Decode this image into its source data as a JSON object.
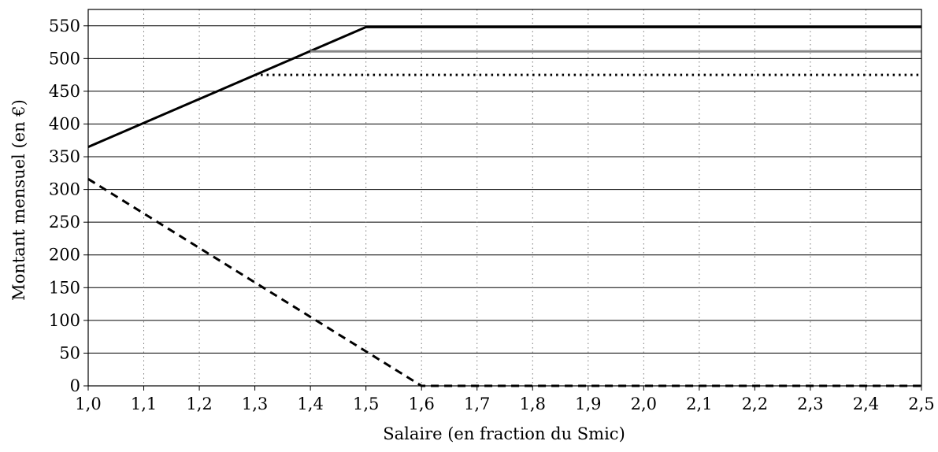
{
  "chart_data": {
    "type": "line",
    "title": "",
    "xlabel": "Salaire (en fraction du Smic)",
    "ylabel": "Montant mensuel (en €)",
    "xlim": [
      1.0,
      2.5
    ],
    "ylim": [
      0,
      575
    ],
    "x_ticks": [
      "1,0",
      "1,1",
      "1,2",
      "1,3",
      "1,4",
      "1,5",
      "1,6",
      "1,7",
      "1,8",
      "1,9",
      "2,0",
      "2,1",
      "2,2",
      "2,3",
      "2,4",
      "2,5"
    ],
    "y_ticks": [
      "0",
      "50",
      "100",
      "150",
      "200",
      "250",
      "300",
      "350",
      "400",
      "450",
      "500",
      "550"
    ],
    "grid": {
      "y": "solid",
      "x": "dotted"
    },
    "series": [
      {
        "style": "solid",
        "color": "#000000",
        "points": [
          [
            1.0,
            365
          ],
          [
            1.5,
            548
          ],
          [
            2.5,
            548
          ]
        ]
      },
      {
        "style": "solid",
        "color": "#888888",
        "points": [
          [
            1.4,
            511
          ],
          [
            2.5,
            511
          ]
        ]
      },
      {
        "style": "dotted",
        "color": "#000000",
        "points": [
          [
            1.3,
            475
          ],
          [
            2.5,
            475
          ]
        ]
      },
      {
        "style": "dashed",
        "color": "#000000",
        "points": [
          [
            1.0,
            316
          ],
          [
            1.6,
            0
          ],
          [
            2.5,
            0
          ]
        ]
      }
    ]
  }
}
